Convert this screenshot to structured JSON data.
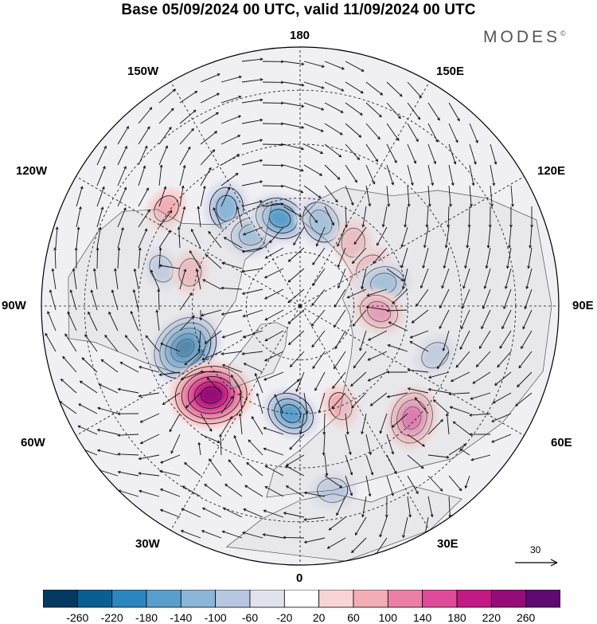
{
  "title": "Base 05/09/2024 00 UTC, valid 11/09/2024 00 UTC",
  "brand": {
    "name": "MODES",
    "mark": "©"
  },
  "map": {
    "projection": "north polar stereographic",
    "longitude_labels": {
      "top": "180",
      "bottom": "0",
      "left": "90W",
      "right": "90E",
      "upper_left_1": "150W",
      "upper_left_2": "120W",
      "upper_right_1": "150E",
      "upper_right_2": "120E",
      "lower_left_1": "60W",
      "lower_left_2": "30W",
      "lower_right_1": "60E",
      "lower_right_2": "30E"
    },
    "wind_reference": {
      "label": "30"
    },
    "anomaly_centers": [
      {
        "lon": -143,
        "lat": 56,
        "value": -120
      },
      {
        "lon": -126,
        "lat": 44,
        "value": 60
      },
      {
        "lon": -146,
        "lat": 66,
        "value": -120
      },
      {
        "lon": -167,
        "lat": 65,
        "value": -140
      },
      {
        "lon": 166,
        "lat": 66,
        "value": -120
      },
      {
        "lon": 140,
        "lat": 67,
        "value": 70
      },
      {
        "lon": 118,
        "lat": 68,
        "value": 80
      },
      {
        "lon": 105,
        "lat": 66,
        "value": -120
      },
      {
        "lon": 86,
        "lat": 68,
        "value": 100
      },
      {
        "lon": -105,
        "lat": 50,
        "value": -60
      },
      {
        "lon": -107,
        "lat": 58,
        "value": 60
      },
      {
        "lon": -70,
        "lat": 56,
        "value": -220
      },
      {
        "lon": -45,
        "lat": 55,
        "value": 240
      },
      {
        "lon": -5,
        "lat": 60,
        "value": -130
      },
      {
        "lon": 22,
        "lat": 60,
        "value": 60
      },
      {
        "lon": 45,
        "lat": 46,
        "value": 150
      },
      {
        "lon": 70,
        "lat": 50,
        "value": -70
      },
      {
        "lon": 10,
        "lat": 38,
        "value": -80
      }
    ]
  },
  "colorbar": {
    "colors": [
      "#053a60",
      "#0a5f92",
      "#2b86bf",
      "#5a9fcc",
      "#8bb6d8",
      "#b7c7e1",
      "#e2e2ef",
      "#ffffff",
      "#f8d5d4",
      "#f2aeb6",
      "#ec7fa7",
      "#e04a9a",
      "#c21a85",
      "#950c78",
      "#5f0a70"
    ],
    "tick_labels": [
      "-260",
      "-220",
      "-180",
      "-140",
      "-100",
      "-60",
      "-20",
      "20",
      "60",
      "100",
      "140",
      "180",
      "220",
      "260"
    ]
  }
}
